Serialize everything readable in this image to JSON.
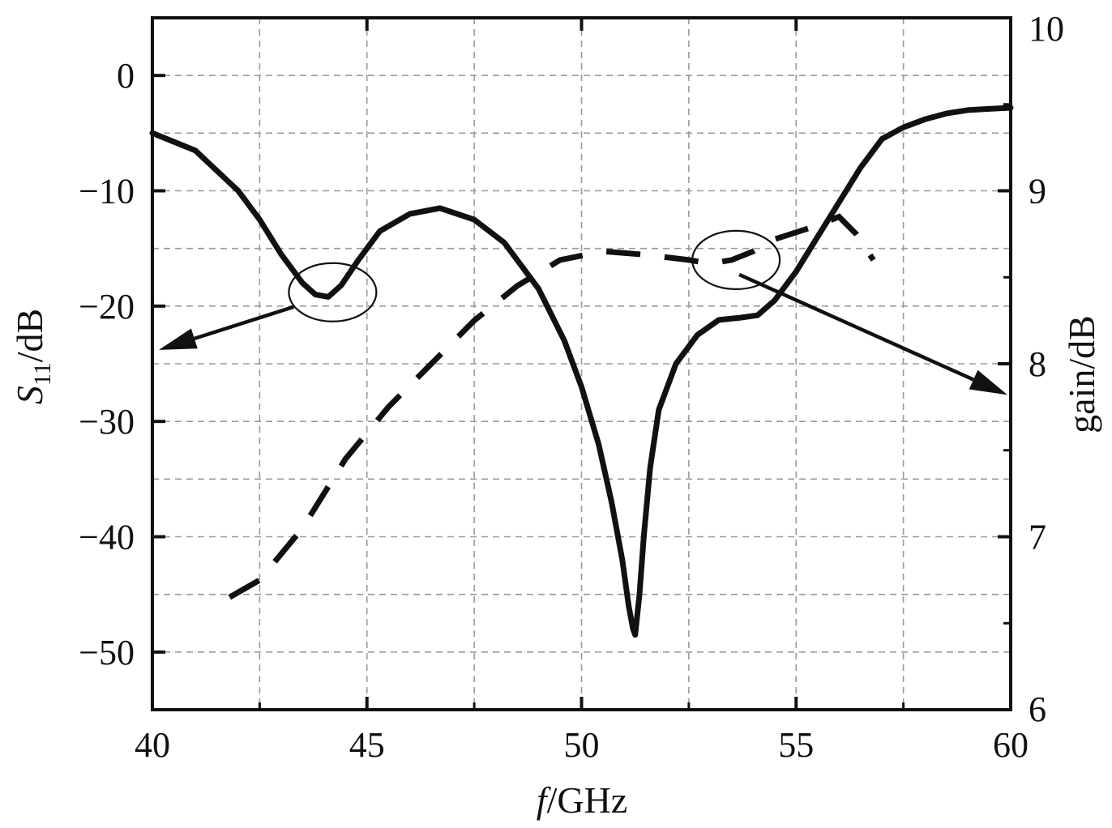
{
  "chart_data": {
    "type": "line",
    "title": "",
    "xlabel": {
      "italic": "f",
      "rest": "/GHz"
    },
    "ylabel_left": {
      "italic": "S",
      "subscript": "11",
      "rest": "/dB"
    },
    "ylabel_right": "gain/dB",
    "xlim": [
      40,
      60
    ],
    "ylim_left": [
      -55,
      5
    ],
    "ylim_right": [
      6,
      10
    ],
    "x_ticks": [
      "40",
      "45",
      "50",
      "55",
      "60"
    ],
    "y_left_ticks": [
      "0",
      "−10",
      "−20",
      "−30",
      "−40",
      "−50"
    ],
    "y_right_ticks": [
      "10",
      "9",
      "8",
      "7",
      "6"
    ],
    "grid": true,
    "series": [
      {
        "axis": "left",
        "style": "solid",
        "x": [
          40,
          41,
          42,
          42.5,
          43,
          43.5,
          43.8,
          44.1,
          44.4,
          44.8,
          45.3,
          46,
          46.7,
          47.5,
          48.2,
          49,
          49.6,
          50,
          50.4,
          50.7,
          50.95,
          51.1,
          51.2,
          51.25,
          51.35,
          51.45,
          51.6,
          51.8,
          52.2,
          52.7,
          53.2,
          53.7,
          54.1,
          54.5,
          55,
          55.5,
          56,
          56.5,
          57,
          57.5,
          58,
          58.5,
          59,
          59.5,
          60
        ],
        "y": [
          -5,
          -6.5,
          -10,
          -12.5,
          -15.5,
          -18,
          -19,
          -19.2,
          -18.2,
          -16,
          -13.5,
          -12,
          -11.5,
          -12.5,
          -14.5,
          -18.5,
          -23,
          -27,
          -32,
          -37,
          -42,
          -46,
          -48,
          -48.5,
          -45,
          -40,
          -34,
          -29,
          -25,
          -22.5,
          -21.2,
          -21,
          -20.8,
          -19.5,
          -17,
          -14,
          -11,
          -8,
          -5.5,
          -4.5,
          -3.8,
          -3.3,
          -3,
          -2.9,
          -2.8
        ]
      },
      {
        "axis": "right",
        "style": "dashed",
        "x": [
          41.8,
          42.5,
          43.5,
          44.5,
          45.5,
          46.5,
          47.5,
          48.5,
          49.5,
          50.5,
          51.5,
          52.5,
          53,
          53.5,
          54,
          54.5,
          55.5,
          56,
          56.4,
          56.8
        ],
        "y": [
          6.65,
          6.75,
          7.05,
          7.45,
          7.75,
          8.0,
          8.25,
          8.45,
          8.6,
          8.65,
          8.63,
          8.6,
          8.58,
          8.6,
          8.65,
          8.72,
          8.8,
          8.85,
          8.75,
          8.6
        ]
      }
    ],
    "annotations": [
      {
        "type": "ellipse-arrow",
        "target_axis": "left",
        "x": 44.2,
        "y": -18.8,
        "points_to": "left"
      },
      {
        "type": "ellipse-arrow",
        "target_axis": "right",
        "x": 53.6,
        "y": 8.6,
        "points_to": "right"
      }
    ]
  }
}
